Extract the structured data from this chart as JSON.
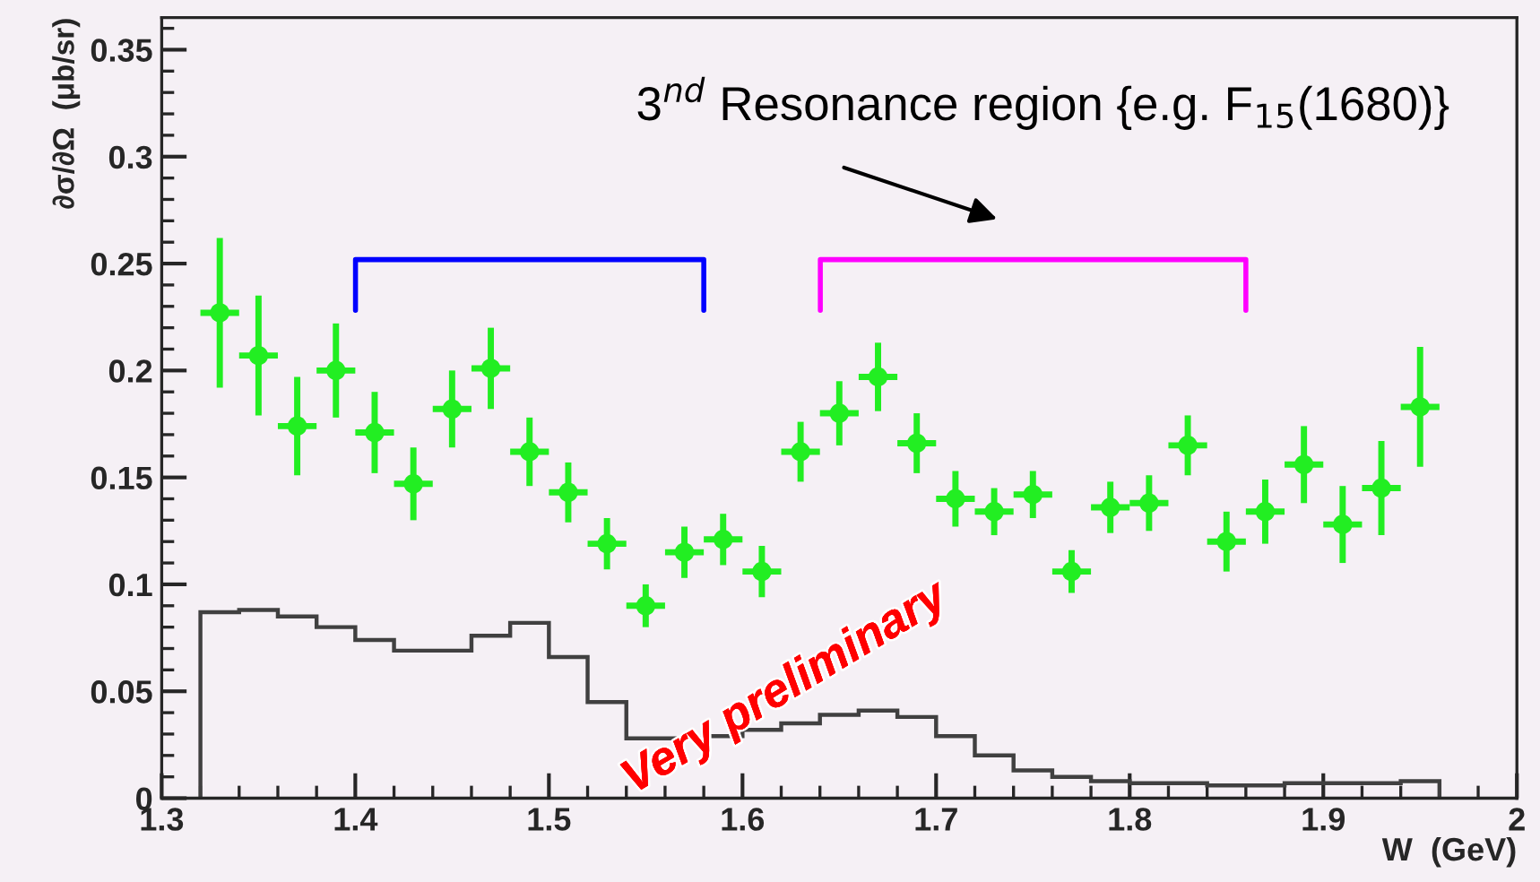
{
  "chart_data": {
    "type": "scatter",
    "xlabel": "W  (GeV)",
    "ylabel": "∂σ/∂Ω  (μb/sr)",
    "xlim": [
      1.3,
      2.0
    ],
    "xticks": [
      1.3,
      1.4,
      1.5,
      1.6,
      1.7,
      1.8,
      1.9,
      {
        "value": 2.0,
        "label": "2"
      }
    ],
    "ylim": [
      0,
      0.365
    ],
    "yticks": [
      0,
      0.05,
      0.1,
      0.15,
      0.2,
      0.25,
      0.3,
      0.35
    ],
    "grid": false,
    "marker": "circle",
    "series": [
      {
        "color": "#22ee22",
        "x": [
          1.33,
          1.35,
          1.37,
          1.39,
          1.41,
          1.43,
          1.45,
          1.47,
          1.49,
          1.51,
          1.53,
          1.55,
          1.57,
          1.59,
          1.61,
          1.63,
          1.65,
          1.67,
          1.69,
          1.71,
          1.73,
          1.75,
          1.77,
          1.79,
          1.81,
          1.83,
          1.85,
          1.87,
          1.89,
          1.91,
          1.93,
          1.95
        ],
        "values": [
          0.227,
          0.207,
          0.174,
          0.2,
          0.171,
          0.147,
          0.182,
          0.201,
          0.162,
          0.143,
          0.119,
          0.09,
          0.115,
          0.121,
          0.106,
          0.162,
          0.18,
          0.197,
          0.166,
          0.14,
          0.134,
          0.142,
          0.106,
          0.136,
          0.138,
          0.165,
          0.12,
          0.134,
          0.156,
          0.128,
          0.145,
          0.183
        ],
        "errors": [
          0.035,
          0.028,
          0.023,
          0.022,
          0.019,
          0.017,
          0.018,
          0.019,
          0.016,
          0.014,
          0.012,
          0.01,
          0.012,
          0.012,
          0.012,
          0.014,
          0.015,
          0.016,
          0.014,
          0.013,
          0.011,
          0.011,
          0.01,
          0.012,
          0.013,
          0.014,
          0.014,
          0.015,
          0.018,
          0.018,
          0.022,
          0.028
        ],
        "xerrors": [
          0.01,
          0.01,
          0.01,
          0.01,
          0.01,
          0.01,
          0.01,
          0.01,
          0.01,
          0.01,
          0.01,
          0.01,
          0.01,
          0.01,
          0.01,
          0.01,
          0.01,
          0.01,
          0.01,
          0.01,
          0.01,
          0.01,
          0.01,
          0.01,
          0.01,
          0.01,
          0.01,
          0.01,
          0.01,
          0.01,
          0.01,
          0.01
        ]
      },
      {
        "type": "histogram",
        "color": "#404040",
        "bins": [
          1.32,
          1.34,
          1.36,
          1.38,
          1.4,
          1.42,
          1.44,
          1.46,
          1.48,
          1.5,
          1.52,
          1.54,
          1.56,
          1.58,
          1.6,
          1.62,
          1.64,
          1.66,
          1.68,
          1.7,
          1.72,
          1.74,
          1.76,
          1.78,
          1.8,
          1.82,
          1.84,
          1.86,
          1.88,
          1.9,
          1.92,
          1.94,
          1.96
        ],
        "values": [
          0.087,
          0.088,
          0.085,
          0.08,
          0.074,
          0.069,
          0.069,
          0.076,
          0.082,
          0.066,
          0.045,
          0.028,
          0.028,
          0.029,
          0.032,
          0.035,
          0.039,
          0.041,
          0.038,
          0.029,
          0.02,
          0.013,
          0.01,
          0.008,
          0.007,
          0.007,
          0.006,
          0.006,
          0.007,
          0.007,
          0.007,
          0.008
        ]
      }
    ],
    "annotations": [
      "3$^{nd}$ Resonance region {e.g. F$_{15}$(1680)}",
      "Very preliminary"
    ]
  }
}
